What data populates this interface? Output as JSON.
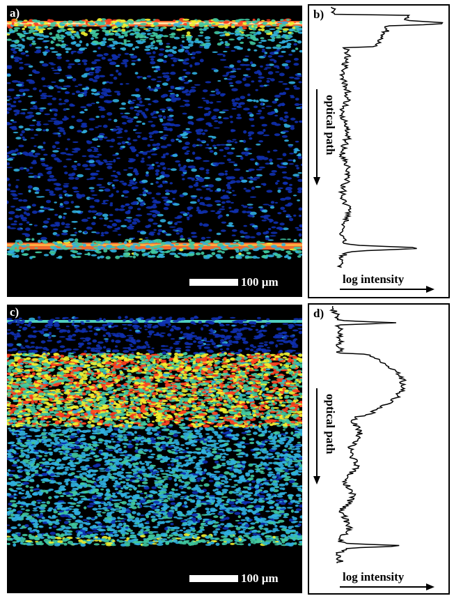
{
  "panels": {
    "a": {
      "label": "a)",
      "scale_label": "100 µm"
    },
    "b": {
      "label": "b)",
      "y_axis": "optical path",
      "x_axis": "log intensity"
    },
    "c": {
      "label": "c)",
      "scale_label": "100 µm"
    },
    "d": {
      "label": "d)",
      "y_axis": "optical path",
      "x_axis": "log intensity"
    }
  },
  "colors": {
    "background": "#000000",
    "low": "#1030b0",
    "mid": "#30b0e0",
    "high": "#f0f030",
    "peak": "#ff4020"
  }
}
